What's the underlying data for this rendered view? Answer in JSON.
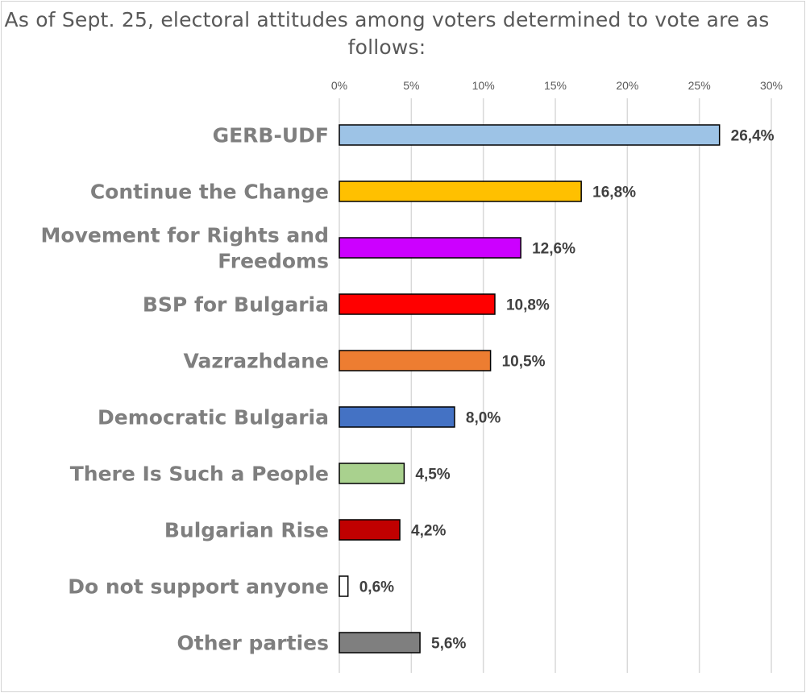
{
  "chart_data": {
    "type": "bar",
    "orientation": "horizontal",
    "title": "As of Sept. 25, electoral attitudes among voters determined to vote are as follows:",
    "categories": [
      [
        "GERB-UDF"
      ],
      [
        "Continue the Change"
      ],
      [
        "Movement for Rights and",
        "Freedoms"
      ],
      [
        "BSP for Bulgaria"
      ],
      [
        "Vazrazhdane"
      ],
      [
        "Democratic Bulgaria"
      ],
      [
        "There Is Such a People"
      ],
      [
        "Bulgarian Rise"
      ],
      [
        "Do not support anyone"
      ],
      [
        "Other parties"
      ]
    ],
    "values": [
      26.4,
      16.8,
      12.6,
      10.8,
      10.5,
      8.0,
      4.5,
      4.2,
      0.6,
      5.6
    ],
    "data_labels": [
      "26,4%",
      "16,8%",
      "12,6%",
      "10,8%",
      "10,5%",
      "8,0%",
      "4,5%",
      "4,2%",
      "0,6%",
      "5,6%"
    ],
    "colors": [
      "#9dc3e6",
      "#ffc000",
      "#cc00ff",
      "#ff0000",
      "#ed7d31",
      "#4472c4",
      "#a9d18e",
      "#c00000",
      "#ffffff",
      "#7f7f7f"
    ],
    "xlim": [
      0,
      30
    ],
    "ticks": [
      0,
      5,
      10,
      15,
      20,
      25,
      30
    ],
    "tick_labels": [
      "0%",
      "5%",
      "10%",
      "15%",
      "20%",
      "25%",
      "30%"
    ],
    "axis_position": "top",
    "grid": true,
    "xlabel": "",
    "ylabel": ""
  }
}
